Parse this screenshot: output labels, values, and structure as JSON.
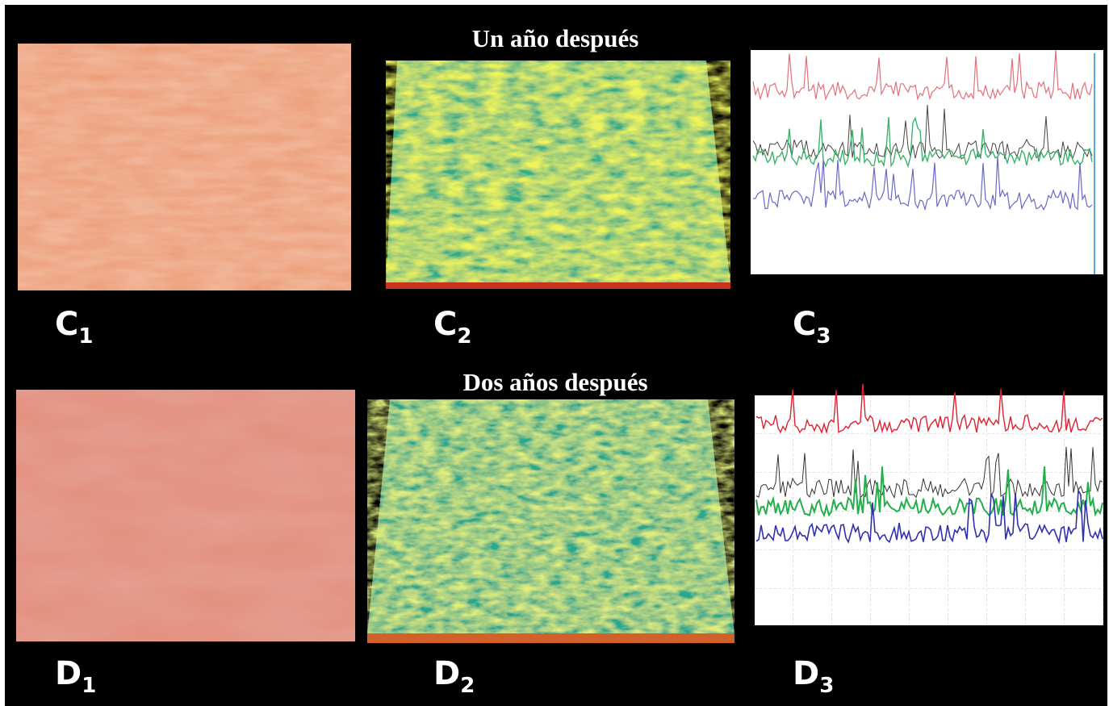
{
  "titles": [
    "Un año después",
    "Dos años después"
  ],
  "panels": [
    {
      "letter": "C",
      "sub": "1"
    },
    {
      "letter": "C",
      "sub": "2"
    },
    {
      "letter": "C",
      "sub": "3"
    },
    {
      "letter": "D",
      "sub": "1"
    },
    {
      "letter": "D",
      "sub": "2"
    },
    {
      "letter": "D",
      "sub": "3"
    }
  ]
}
